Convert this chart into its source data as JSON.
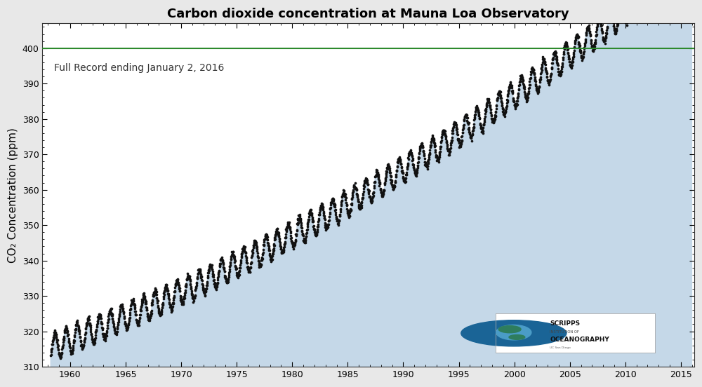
{
  "title": "Carbon dioxide concentration at Mauna Loa Observatory",
  "ylabel": "CO₂ Concentration (ppm)",
  "annotation": "Full Record ending January 2, 2016",
  "hline_y": 400,
  "hline_color": "#2d8a2d",
  "fill_color": "#c5d8e8",
  "dot_color": "#111111",
  "axes_bg_color": "#ffffff",
  "fig_bg_color": "#e8e8e8",
  "xlim": [
    1957.5,
    2016.2
  ],
  "ylim": [
    310,
    407
  ],
  "xticks": [
    1960,
    1965,
    1970,
    1975,
    1980,
    1985,
    1990,
    1995,
    2000,
    2005,
    2010,
    2015
  ],
  "yticks": [
    310,
    320,
    330,
    340,
    350,
    360,
    370,
    380,
    390,
    400
  ],
  "dot_size": 7,
  "baseline": 315.3,
  "linear": 1.18,
  "quad": 0.0125,
  "seasonal_amp": 3.7,
  "noise_std": 0.4
}
